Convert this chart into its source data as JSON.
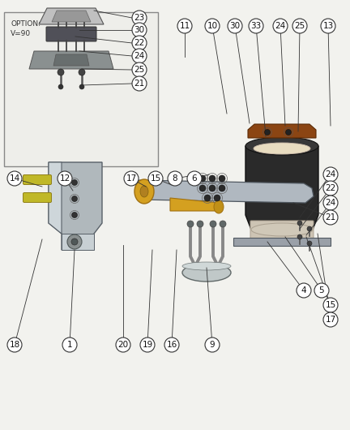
{
  "bg_color": "#f2f2ee",
  "inset_bg": "#eeeeea",
  "inset_border": "#888888",
  "line_color": "#333333",
  "circle_fill": "#ffffff",
  "circle_edge": "#333333",
  "label_fontsize": 7.5,
  "inset_label_1": "OPTION:",
  "inset_label_2": "V=90",
  "metal_gray": "#b0b8c0",
  "dark_gray": "#606060",
  "yellow_part": "#d4a020",
  "brown_part": "#8B4513",
  "cream_part": "#e8dcc0",
  "dark_rubber": "#2a2a2a",
  "bracket_gray": "#909898"
}
